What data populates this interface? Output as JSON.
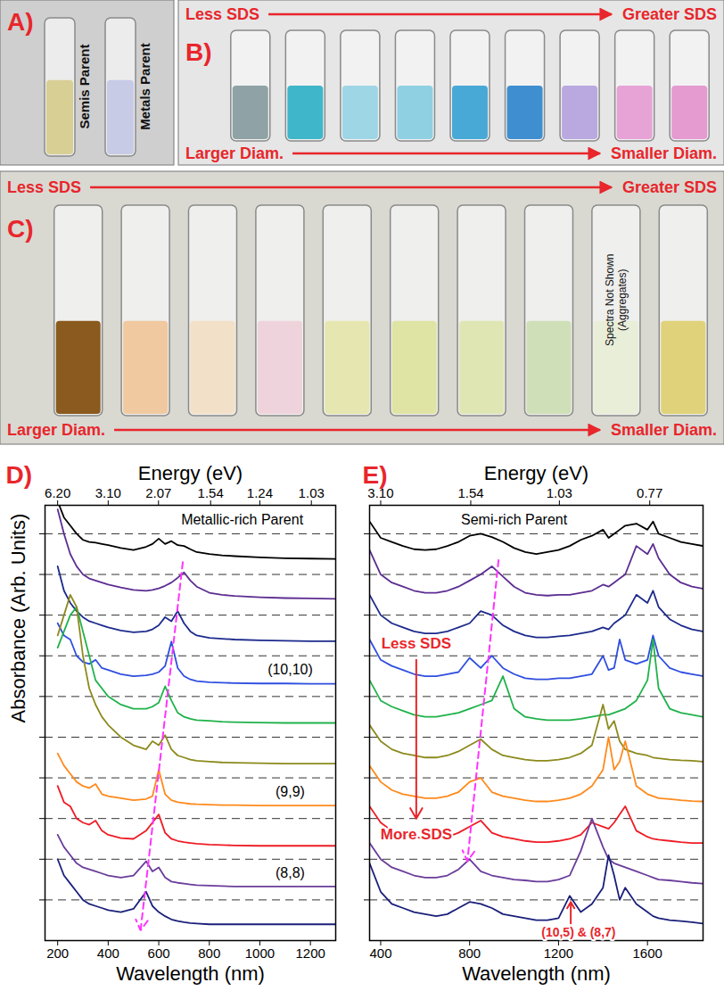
{
  "panels": [
    {
      "letter": "A)",
      "vials": [
        {
          "color": "#d8cf95",
          "label": "Semis Parent"
        },
        {
          "color": "#c7cbe6",
          "label": "Metals Parent"
        }
      ]
    },
    {
      "letter": "B)",
      "top": [
        "Less SDS",
        "Greater SDS"
      ],
      "bottom": [
        "Larger Diam.",
        "Smaller Diam."
      ],
      "vials": [
        {
          "color": "#8fa3a6"
        },
        {
          "color": "#3fb6c9"
        },
        {
          "color": "#9fd6e6"
        },
        {
          "color": "#8fd0e3"
        },
        {
          "color": "#49a9d6"
        },
        {
          "color": "#3f8fd0"
        },
        {
          "color": "#b9a9e0"
        },
        {
          "color": "#e7a3d6"
        },
        {
          "color": "#e59ad0"
        }
      ]
    },
    {
      "letter": "C)",
      "top": [
        "Less SDS",
        "Greater SDS"
      ],
      "bottom": [
        "Larger Diam.",
        "Smaller Diam."
      ],
      "vials": [
        {
          "color": "#8a5a1e"
        },
        {
          "color": "#f0c9a0"
        },
        {
          "color": "#f3e0c8"
        },
        {
          "color": "#efd3dc"
        },
        {
          "color": "#e6e6b0"
        },
        {
          "color": "#dfe3a4"
        },
        {
          "color": "#dfe6b4"
        },
        {
          "color": "#cfe0b8"
        },
        {
          "color": "#e9eed9",
          "label": "Spectra Not Shown (Aggregates)"
        },
        {
          "color": "#e0d27a"
        }
      ]
    }
  ],
  "chart_data": [
    {
      "type": "line",
      "panel": "D)",
      "x_label": "Wavelength (nm)",
      "x2_label": "Energy (eV)",
      "y_label": "Absorbance (Arb. Units)",
      "xlim": [
        150,
        1300
      ],
      "xticks": [
        200,
        400,
        600,
        800,
        1000,
        1200
      ],
      "x2ticks": [
        {
          "value": 6.2,
          "label": "6.20"
        },
        {
          "value": 3.1,
          "label": "3.10"
        },
        2.07,
        1.54,
        1.24,
        1.03
      ],
      "ylim": [
        0,
        10.7
      ],
      "yticks": [
        1,
        2,
        3,
        4,
        5,
        6,
        7,
        8,
        9,
        10
      ],
      "grid": true,
      "tick_labels": "x",
      "x": [
        200,
        225,
        250,
        275,
        300,
        325,
        350,
        375,
        400,
        450,
        500,
        550,
        575,
        600,
        625,
        650,
        675,
        700,
        725,
        750,
        800,
        850,
        900,
        1000,
        1100,
        1200,
        1300
      ],
      "series": [
        {
          "color": "#000000",
          "baseline": 9,
          "values": [
            1.8,
            1.4,
            1.2,
            1.0,
            0.85,
            0.8,
            0.78,
            0.75,
            0.72,
            0.65,
            0.6,
            0.68,
            0.75,
            0.88,
            0.75,
            0.82,
            0.72,
            0.7,
            0.62,
            0.55,
            0.5,
            0.47,
            0.45,
            0.42,
            0.4,
            0.39,
            0.38
          ]
        },
        {
          "color": "#5c2d91",
          "baseline": 8,
          "values": [
            2.6,
            2.0,
            1.5,
            1.2,
            1.0,
            0.9,
            0.85,
            0.8,
            0.75,
            0.68,
            0.62,
            0.6,
            0.62,
            0.66,
            0.72,
            0.8,
            0.92,
            1.05,
            0.85,
            0.7,
            0.55,
            0.5,
            0.47,
            0.44,
            0.42,
            0.41,
            0.4
          ]
        },
        {
          "color": "#1c2a8c",
          "baseline": 7,
          "values": [
            2.2,
            1.6,
            1.3,
            1.1,
            0.95,
            0.85,
            0.8,
            0.75,
            0.7,
            0.62,
            0.58,
            0.6,
            0.65,
            0.75,
            0.95,
            0.85,
            1.1,
            0.8,
            0.6,
            0.5,
            0.44,
            0.42,
            0.4,
            0.38,
            0.37,
            0.36,
            0.36
          ]
        },
        {
          "color": "#2f4ee0",
          "baseline": 6,
          "values": [
            1.8,
            1.5,
            1.4,
            1.0,
            0.85,
            0.8,
            0.9,
            0.7,
            0.65,
            0.55,
            0.5,
            0.52,
            0.55,
            0.6,
            0.75,
            1.35,
            0.7,
            0.5,
            0.42,
            0.38,
            0.35,
            0.34,
            0.33,
            0.32,
            0.32,
            0.31,
            0.31
          ]
        },
        {
          "color": "#1fb24a",
          "baseline": 5,
          "values": [
            2.2,
            2.6,
            3.0,
            3.2,
            2.6,
            2.0,
            1.4,
            1.2,
            1.0,
            0.8,
            0.7,
            0.7,
            0.75,
            0.85,
            1.25,
            0.9,
            0.6,
            0.5,
            0.45,
            0.42,
            0.4,
            0.38,
            0.37,
            0.36,
            0.35,
            0.35,
            0.35
          ]
        },
        {
          "color": "#8c8a1c",
          "baseline": 4,
          "values": [
            3.5,
            4.0,
            4.5,
            4.2,
            3.0,
            2.2,
            1.8,
            1.5,
            1.3,
            1.0,
            0.8,
            0.7,
            0.9,
            0.8,
            1.05,
            0.7,
            0.55,
            0.5,
            0.45,
            0.42,
            0.4,
            0.38,
            0.37,
            0.36,
            0.35,
            0.35,
            0.35
          ]
        },
        {
          "color": "#ff8a1c",
          "baseline": 3,
          "values": [
            1.6,
            1.3,
            1.1,
            0.9,
            0.8,
            0.75,
            0.85,
            0.6,
            0.55,
            0.5,
            0.45,
            0.48,
            0.55,
            1.2,
            0.6,
            0.45,
            0.4,
            0.38,
            0.36,
            0.35,
            0.34,
            0.33,
            0.33,
            0.32,
            0.32,
            0.32,
            0.32
          ]
        },
        {
          "color": "#ee1c25",
          "baseline": 2,
          "values": [
            1.8,
            1.4,
            1.3,
            1.0,
            0.9,
            0.85,
            0.95,
            0.7,
            0.6,
            0.52,
            0.5,
            0.7,
            0.9,
            1.1,
            0.65,
            0.5,
            0.45,
            0.42,
            0.4,
            0.38,
            0.36,
            0.35,
            0.34,
            0.33,
            0.33,
            0.33,
            0.33
          ]
        },
        {
          "color": "#6a3d9a",
          "baseline": 1,
          "values": [
            1.6,
            1.3,
            1.1,
            0.9,
            0.8,
            0.75,
            0.7,
            0.65,
            0.6,
            0.55,
            0.6,
            0.95,
            0.7,
            0.8,
            0.55,
            0.45,
            0.42,
            0.4,
            0.38,
            0.36,
            0.35,
            0.34,
            0.33,
            0.33,
            0.33,
            0.33,
            0.33
          ]
        },
        {
          "color": "#1a1f7a",
          "baseline": 0,
          "values": [
            2.0,
            1.6,
            1.4,
            1.2,
            1.0,
            0.9,
            0.85,
            0.8,
            0.75,
            0.7,
            0.78,
            1.2,
            0.85,
            0.7,
            0.6,
            0.52,
            0.48,
            0.45,
            0.43,
            0.42,
            0.4,
            0.4,
            0.4,
            0.4,
            0.4,
            0.4,
            0.4
          ]
        }
      ],
      "annotations": [
        {
          "text": "Metallic-rich Parent",
          "x": 930,
          "y": 10.33,
          "color": "#000000"
        },
        {
          "text": "(10,10)",
          "x": 1120,
          "y": 6.65,
          "color": "#000000"
        },
        {
          "text": "(9,9)",
          "x": 1120,
          "y": 3.65,
          "color": "#000000"
        },
        {
          "text": "(8,8)",
          "x": 1120,
          "y": 1.65,
          "color": "#000000"
        }
      ],
      "arrows": [
        {
          "x": [
            695,
            528
          ],
          "y": [
            9.3,
            0.25
          ],
          "color": "#ff33ff",
          "line_style": "dashed"
        }
      ]
    },
    {
      "type": "line",
      "panel": "E)",
      "x_label": "Wavelength (nm)",
      "x2_label": "Energy (eV)",
      "xlim": [
        350,
        1850
      ],
      "xticks": [
        400,
        800,
        1200,
        1600
      ],
      "x2ticks": [
        {
          "value": 3.1,
          "label": "3.10"
        },
        1.54,
        1.03,
        0.77
      ],
      "ylim": [
        0,
        10.7
      ],
      "yticks": [
        1,
        2,
        3,
        4,
        5,
        6,
        7,
        8,
        9,
        10
      ],
      "grid": true,
      "tick_labels": "x",
      "x": [
        350,
        400,
        450,
        500,
        550,
        600,
        650,
        700,
        750,
        800,
        850,
        900,
        950,
        1000,
        1050,
        1100,
        1150,
        1200,
        1250,
        1300,
        1350,
        1400,
        1425,
        1450,
        1475,
        1500,
        1550,
        1600,
        1625,
        1650,
        1700,
        1750,
        1800,
        1850
      ],
      "series": [
        {
          "color": "#000000",
          "baseline": 9,
          "values": [
            1.3,
            0.9,
            0.8,
            0.7,
            0.62,
            0.6,
            0.62,
            0.7,
            0.8,
            0.95,
            1.0,
            0.92,
            0.8,
            0.65,
            0.55,
            0.5,
            0.55,
            0.6,
            0.7,
            0.85,
            0.95,
            1.1,
            0.9,
            1.0,
            1.1,
            1.2,
            1.25,
            1.1,
            1.3,
            1.0,
            0.9,
            0.8,
            0.75,
            0.7
          ]
        },
        {
          "color": "#5c2d91",
          "baseline": 8,
          "values": [
            1.6,
            1.0,
            0.8,
            0.7,
            0.6,
            0.55,
            0.55,
            0.6,
            0.7,
            0.85,
            1.0,
            1.2,
            0.95,
            0.7,
            0.55,
            0.5,
            0.48,
            0.5,
            0.5,
            0.55,
            0.6,
            0.75,
            0.7,
            0.8,
            0.9,
            1.0,
            1.7,
            1.5,
            1.75,
            1.4,
            1.0,
            0.8,
            0.7,
            0.65
          ]
        },
        {
          "color": "#1c2a8c",
          "baseline": 7,
          "values": [
            1.5,
            1.0,
            0.8,
            0.7,
            0.6,
            0.55,
            0.55,
            0.6,
            0.7,
            0.8,
            1.1,
            1.0,
            0.75,
            0.6,
            0.5,
            0.45,
            0.45,
            0.48,
            0.5,
            0.55,
            0.6,
            0.7,
            0.65,
            0.8,
            0.9,
            1.0,
            1.5,
            1.3,
            1.6,
            1.2,
            0.9,
            0.75,
            0.65,
            0.6
          ]
        },
        {
          "color": "#2f4ee0",
          "baseline": 6,
          "values": [
            1.4,
            0.9,
            0.75,
            0.65,
            0.55,
            0.5,
            0.5,
            0.55,
            0.6,
            0.95,
            0.7,
            1.0,
            0.7,
            0.55,
            0.45,
            0.42,
            0.42,
            0.45,
            0.45,
            0.5,
            0.55,
            1.0,
            0.65,
            0.7,
            1.4,
            0.9,
            0.8,
            0.9,
            1.5,
            1.0,
            0.7,
            0.6,
            0.55,
            0.5
          ]
        },
        {
          "color": "#1fb24a",
          "baseline": 5,
          "values": [
            1.4,
            0.9,
            0.75,
            0.65,
            0.55,
            0.5,
            0.5,
            0.55,
            0.6,
            0.7,
            0.8,
            0.9,
            1.5,
            0.7,
            0.5,
            0.45,
            0.42,
            0.42,
            0.42,
            0.45,
            0.5,
            0.55,
            0.55,
            0.6,
            0.65,
            0.7,
            0.9,
            1.4,
            2.4,
            1.2,
            0.7,
            0.6,
            0.55,
            0.5
          ]
        },
        {
          "color": "#8c8a1c",
          "baseline": 4,
          "values": [
            1.3,
            0.9,
            0.7,
            0.6,
            0.55,
            0.5,
            0.5,
            0.55,
            0.65,
            0.8,
            0.95,
            0.7,
            0.55,
            0.5,
            0.45,
            0.42,
            0.42,
            0.45,
            0.5,
            0.6,
            0.8,
            1.8,
            1.2,
            1.4,
            0.9,
            0.7,
            0.6,
            0.55,
            0.5,
            0.48,
            0.45,
            0.43,
            0.42,
            0.4
          ]
        },
        {
          "color": "#ff8a1c",
          "baseline": 3,
          "values": [
            1.3,
            0.9,
            0.7,
            0.6,
            0.55,
            0.5,
            0.5,
            0.55,
            0.65,
            0.9,
            1.0,
            0.65,
            0.55,
            0.5,
            0.45,
            0.42,
            0.42,
            0.45,
            0.5,
            0.6,
            0.8,
            1.2,
            2.0,
            1.2,
            1.4,
            1.9,
            0.8,
            0.6,
            0.55,
            0.5,
            0.48,
            0.45,
            0.43,
            0.42
          ]
        },
        {
          "color": "#ee1c25",
          "baseline": 2,
          "values": [
            1.3,
            0.9,
            0.7,
            0.6,
            0.55,
            0.5,
            0.5,
            0.55,
            0.65,
            0.8,
            0.95,
            0.65,
            0.55,
            0.5,
            0.45,
            0.42,
            0.42,
            0.45,
            0.5,
            0.6,
            0.9,
            0.8,
            0.75,
            0.9,
            1.1,
            1.3,
            0.7,
            0.55,
            0.5,
            0.48,
            0.45,
            0.42,
            0.4,
            0.4
          ]
        },
        {
          "color": "#6a3d9a",
          "baseline": 1,
          "values": [
            1.4,
            1.0,
            0.8,
            0.7,
            0.6,
            0.55,
            0.55,
            0.6,
            0.75,
            1.0,
            0.7,
            0.6,
            0.55,
            0.5,
            0.48,
            0.45,
            0.45,
            0.5,
            0.6,
            1.2,
            2.0,
            1.3,
            1.0,
            0.9,
            0.85,
            0.8,
            0.7,
            0.6,
            0.55,
            0.5,
            0.48,
            0.45,
            0.42,
            0.4
          ]
        },
        {
          "color": "#1a1f7a",
          "baseline": 0,
          "values": [
            1.9,
            1.2,
            0.9,
            0.8,
            0.7,
            0.65,
            0.6,
            0.65,
            0.8,
            0.95,
            0.9,
            0.8,
            0.65,
            0.6,
            0.55,
            0.5,
            0.5,
            0.55,
            1.1,
            0.7,
            0.9,
            1.3,
            2.1,
            1.6,
            1.0,
            1.3,
            0.9,
            0.7,
            0.6,
            0.55,
            0.5,
            0.48,
            0.45,
            0.42
          ]
        }
      ],
      "annotations": [
        {
          "text": "Semi-rich Parent",
          "x": 1000,
          "y": 10.33,
          "color": "#000000"
        },
        {
          "text": "Less SDS",
          "x": 560,
          "y": 7.3,
          "color": "#e8262b"
        },
        {
          "text": "More SDS",
          "x": 560,
          "y": 2.6,
          "color": "#e8262b"
        },
        {
          "text": "(10,5) & (8,7)",
          "x": 1290,
          "y": 0.2,
          "color": "#e8262b"
        }
      ],
      "arrows": [
        {
          "x": [
            930,
            790
          ],
          "y": [
            9.35,
            1.95
          ],
          "color": "#ff33ff",
          "line_style": "dashed"
        },
        {
          "x": [
            560,
            560
          ],
          "y": [
            6.9,
            3.0
          ],
          "color": "#e8262b",
          "line_style": "solid"
        },
        {
          "x": [
            1255,
            1255
          ],
          "y": [
            0.42,
            0.95
          ],
          "color": "#e8262b",
          "line_style": "solid"
        }
      ]
    }
  ]
}
